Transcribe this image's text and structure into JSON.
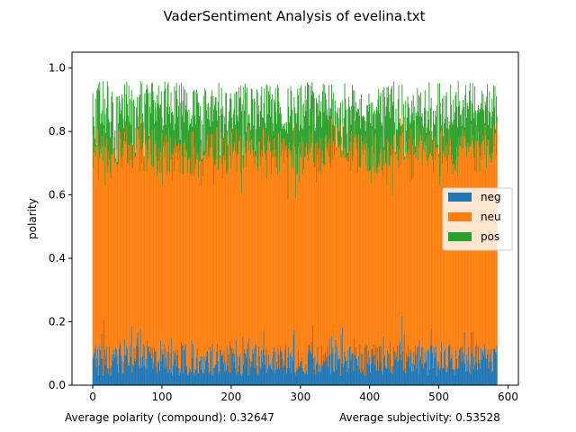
{
  "chart_data": {
    "type": "bar",
    "stacked": true,
    "title": "VaderSentiment Analysis of evelina.txt",
    "xlabel": "",
    "ylabel": "polarity",
    "xlim": [
      -30,
      615
    ],
    "ylim": [
      0.0,
      1.05
    ],
    "xticks": [
      0,
      100,
      200,
      300,
      400,
      500,
      600
    ],
    "yticks": [
      0.0,
      0.2,
      0.4,
      0.6,
      0.8,
      1.0
    ],
    "xtick_labels": [
      "0",
      "100",
      "200",
      "300",
      "400",
      "500",
      "600"
    ],
    "ytick_labels": [
      "0.0",
      "0.2",
      "0.4",
      "0.6",
      "0.8",
      "1.0"
    ],
    "grid": false,
    "legend_position": "center-right",
    "n_bars": 585,
    "series_generation": "approximate per-bar values read visually; typical neg about 0.02-0.20 (mean ~0.08), neu about 0.55-0.80 (mean ~0.72), pos fills to ~0.78-0.97",
    "series": [
      {
        "name": "neg",
        "color": "#1f77b4",
        "approx_mean": 0.08,
        "approx_range": [
          0.03,
          0.28
        ]
      },
      {
        "name": "neu",
        "color": "#ff7f0e",
        "approx_mean": 0.72,
        "approx_range": [
          0.55,
          0.85
        ]
      },
      {
        "name": "pos",
        "color": "#2ca02c",
        "approx_mean": 0.09,
        "approx_range": [
          0.01,
          0.28
        ]
      }
    ],
    "footer": {
      "left": "Average polarity (compound): 0.32647",
      "right": "Average subjectivity: 0.53528"
    }
  }
}
